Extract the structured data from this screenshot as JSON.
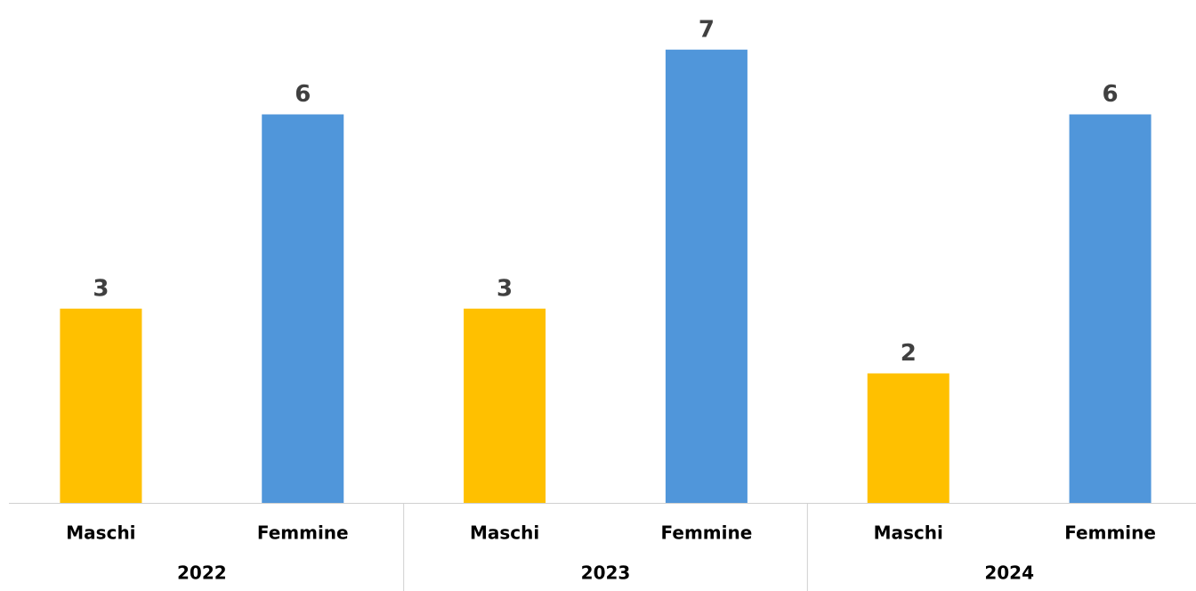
{
  "chart_data": {
    "type": "bar",
    "groups": [
      "2022",
      "2023",
      "2024"
    ],
    "categories": [
      "Maschi",
      "Femmine",
      "Maschi",
      "Femmine",
      "Maschi",
      "Femmine"
    ],
    "values": [
      3,
      6,
      3,
      7,
      2,
      6
    ],
    "colors": [
      "#ffc000",
      "#5096da",
      "#ffc000",
      "#5096da",
      "#ffc000",
      "#5096da"
    ],
    "ylim": [
      0,
      8
    ]
  }
}
